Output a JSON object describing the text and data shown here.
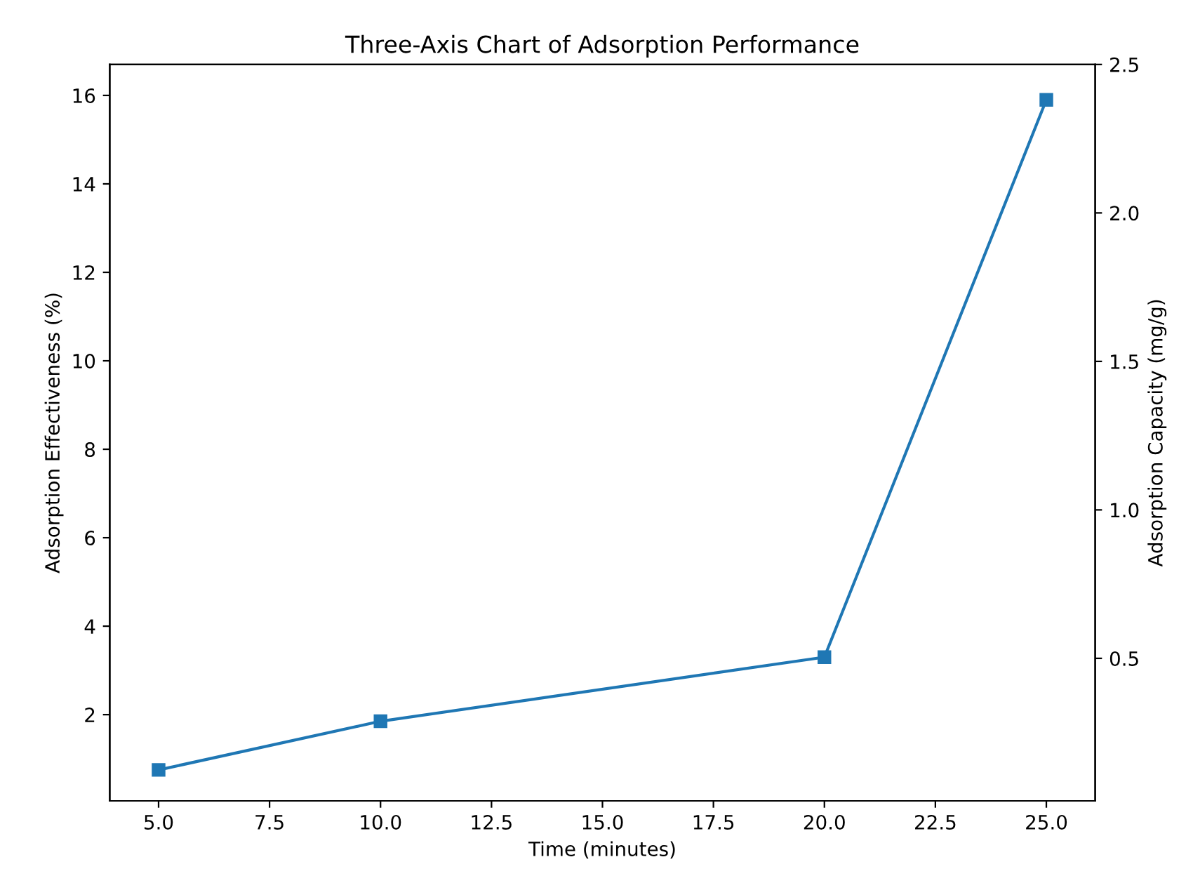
{
  "chart_data": {
    "type": "line",
    "title": "Three-Axis Chart of Adsorption Performance",
    "xlabel": "Time (minutes)",
    "ylabel": "Adsorption Effectiveness (%)",
    "y2label": "Adsorption Capacity (mg/g)",
    "x": [
      5,
      10,
      20,
      25
    ],
    "series": [
      {
        "color": "#1f77b4",
        "values": [
          0.75,
          1.85,
          3.3,
          15.9
        ]
      }
    ],
    "marker": "square",
    "line_style": "solid",
    "xlim": [
      3.9,
      26.1
    ],
    "xticks": [
      {
        "value": 5,
        "label": "5.0"
      },
      {
        "value": 7.5,
        "label": "7.5"
      },
      {
        "value": 10,
        "label": "10.0"
      },
      {
        "value": 12.5,
        "label": "12.5"
      },
      {
        "value": 15,
        "label": "15.0"
      },
      {
        "value": 17.5,
        "label": "17.5"
      },
      {
        "value": 20,
        "label": "20.0"
      },
      {
        "value": 22.5,
        "label": "22.5"
      },
      {
        "value": 25,
        "label": "25.0"
      }
    ],
    "ylim": [
      0.05,
      16.7
    ],
    "yticks": [
      2,
      4,
      6,
      8,
      10,
      12,
      14,
      16
    ],
    "y2lim": [
      0.02,
      2.5
    ],
    "y2ticks": [
      0.5,
      {
        "value": 1,
        "label": "1.0"
      },
      1.5,
      {
        "value": 2,
        "label": "2.0"
      },
      2.5
    ]
  }
}
